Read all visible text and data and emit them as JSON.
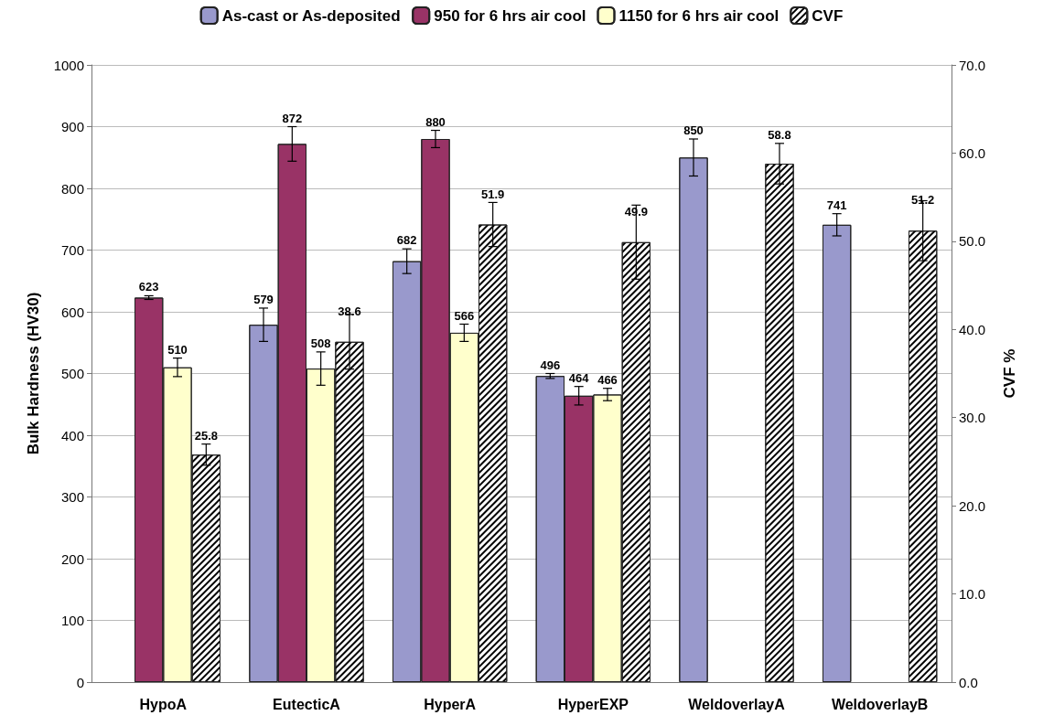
{
  "chart_data": {
    "type": "bar",
    "ylabel": "Bulk Hardness (HV30)",
    "y2label": "CVF %",
    "categories": [
      "HypoA",
      "EutecticA",
      "HyperA",
      "HyperEXP",
      "WeldoverlayA",
      "WeldoverlayB"
    ],
    "series": [
      {
        "name": "As-cast or As-deposited",
        "color": "#9999cc",
        "values": [
          null,
          579,
          682,
          496,
          850,
          741
        ],
        "errors": [
          null,
          27,
          20,
          4,
          30,
          18
        ]
      },
      {
        "name": "950 for 6 hrs air cool",
        "color": "#993366",
        "values": [
          623,
          872,
          880,
          464,
          null,
          null
        ],
        "errors": [
          3,
          28,
          14,
          15,
          null,
          null
        ]
      },
      {
        "name": "1150 for 6 hrs air cool",
        "color": "#ffffcc",
        "values": [
          510,
          508,
          566,
          466,
          null,
          null
        ],
        "errors": [
          15,
          27,
          14,
          10,
          null,
          null
        ]
      },
      {
        "name": "CVF",
        "color": "#ffffff",
        "axis": "y2",
        "values": [
          25.8,
          38.6,
          51.9,
          49.9,
          58.8,
          51.2
        ],
        "errors": [
          1.2,
          3.1,
          2.5,
          4.2,
          2.3,
          3.4
        ]
      }
    ],
    "ylim": [
      0,
      1000
    ],
    "yticks": [
      0,
      100,
      200,
      300,
      400,
      500,
      600,
      700,
      800,
      900,
      1000
    ],
    "y2lim": [
      0,
      70
    ],
    "y2ticks": [
      {
        "value": 0,
        "label": "0.0"
      },
      {
        "value": 10,
        "label": "10.0"
      },
      {
        "value": 20,
        "label": "20.0"
      },
      {
        "value": 30,
        "label": "30.0"
      },
      {
        "value": 40,
        "label": "40.0"
      },
      {
        "value": 50,
        "label": "50.0"
      },
      {
        "value": 60,
        "label": "60.0"
      },
      {
        "value": 70,
        "label": "70.0"
      }
    ],
    "grid": "y",
    "legend": "top",
    "data_labels": true
  }
}
